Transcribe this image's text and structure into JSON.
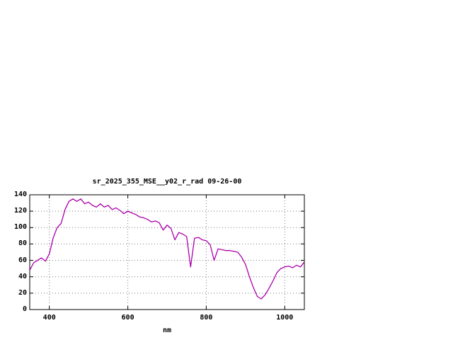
{
  "page": {
    "background_color": "#ffffff"
  },
  "chart_data": {
    "type": "line",
    "title": "sr_2025_355_MSE__y02_r_rad 09-26-00",
    "xlabel": "nm",
    "ylabel": "",
    "xlim": [
      350,
      1050
    ],
    "ylim": [
      0,
      140
    ],
    "xticks": [
      400,
      600,
      800,
      1000
    ],
    "yticks": [
      0,
      20,
      40,
      60,
      80,
      100,
      120,
      140
    ],
    "grid": true,
    "legend_position": "none",
    "line_color": "#aa00aa",
    "axis_color": "#000000",
    "grid_color": "#7a7a7a",
    "series": [
      {
        "name": "sr_2025_355_MSE__y02_r_rad",
        "x": [
          350,
          360,
          370,
          380,
          390,
          400,
          410,
          420,
          430,
          440,
          450,
          460,
          470,
          480,
          490,
          500,
          510,
          520,
          530,
          540,
          550,
          560,
          570,
          580,
          590,
          600,
          610,
          620,
          630,
          640,
          650,
          660,
          670,
          680,
          690,
          700,
          710,
          720,
          730,
          740,
          750,
          760,
          770,
          780,
          790,
          800,
          810,
          820,
          830,
          840,
          850,
          860,
          870,
          880,
          890,
          900,
          910,
          920,
          930,
          940,
          950,
          960,
          970,
          980,
          990,
          1000,
          1010,
          1020,
          1030,
          1040,
          1050
        ],
        "y": [
          48,
          57,
          60,
          63,
          59,
          68,
          88,
          100,
          105,
          122,
          132,
          135,
          132,
          135,
          129,
          131,
          127,
          125,
          129,
          125,
          127,
          122,
          124,
          121,
          117,
          120,
          118,
          116,
          113,
          112,
          110,
          107,
          108,
          106,
          97,
          103,
          99,
          85,
          94,
          92,
          89,
          52,
          87,
          88,
          85,
          84,
          79,
          60,
          74,
          73,
          72,
          72,
          71,
          70,
          64,
          55,
          40,
          27,
          16,
          13,
          18,
          26,
          35,
          45,
          50,
          52,
          53,
          51,
          54,
          52,
          58
        ]
      }
    ]
  }
}
